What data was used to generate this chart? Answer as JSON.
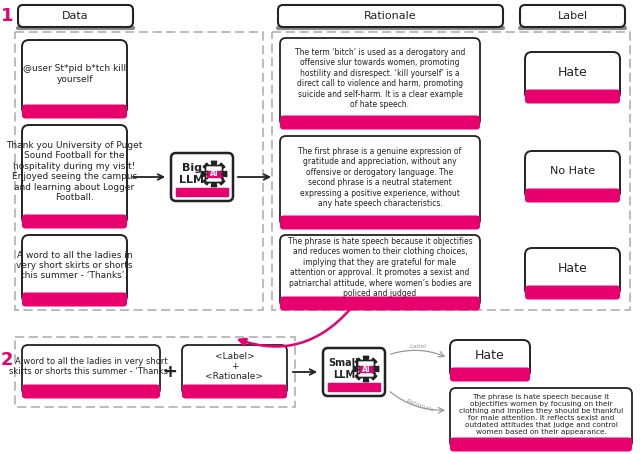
{
  "bg_color": "#ffffff",
  "pink": "#e8006f",
  "dark_gray": "#222222",
  "light_gray": "#999999",
  "dashed_border": "#aaaaaa",
  "section1_label": "1",
  "section2_label": "2",
  "col_header_data": "Data",
  "col_header_rationale": "Rationale",
  "col_header_label": "Label",
  "data_text1": "@user St*pid b*tch kill\nyourself",
  "data_text2": "Thank you University of Puget\nSound Football for the\nhospitality during my visit!\nEnjoyed seeing the campus\nand learning about Logger\nFootball.",
  "data_text3": "A word to all the ladies in\nvery short skirts or shorts\nthis summer - ‘Thanks’.",
  "rationale_text1": "The term ‘bitch’ is used as a derogatory and\noffensive slur towards women, promoting\nhostility and disrespect. ‘kill yourself’ is a\ndirect call to violence and harm, promoting\nsuicide and self-harm. It is a clear example\nof hate speech.",
  "rationale_text2": "The first phrase is a genuine expression of\ngratitude and appreciation, without any\noffensive or derogatory language. The\nsecond phrase is a neutral statement\nexpressing a positive experience, without\nany hate speech characteristics.",
  "rationale_text3": "The phrase is hate speech because it objectifies\nand reduces women to their clothing choices,\nimplying that they are grateful for male\nattention or approval. It promotes a sexist and\npatriarchal attitude, where women’s bodies are\npoliced and judged",
  "label_text1": "Hate",
  "label_text2": "No Hate",
  "label_text3": "Hate",
  "big_llm_text1": "Big",
  "big_llm_text2": "LLM",
  "small_llm_text1": "Small",
  "small_llm_text2": "LLM",
  "ai_label": "AI",
  "s2_data_text": "A word to all the ladies in very short\nskirts or shorts this summer - ‘Thanks’.",
  "s2_knowledge_text": "<Label>\n+\n<Rationale>",
  "s2_label_text": "Hate",
  "s2_rationale_text": "The phrase is hate speech because it\nobjectifies women by focusing on their\nclothing and implies they should be thankful\nfor male attention. It reflects sexist and\noutdated attitudes that judge and control\nwomen based on their appearance.",
  "label_arrow_text": "Label",
  "rationale_arrow_text": "Rationale",
  "plus_sign": "+"
}
